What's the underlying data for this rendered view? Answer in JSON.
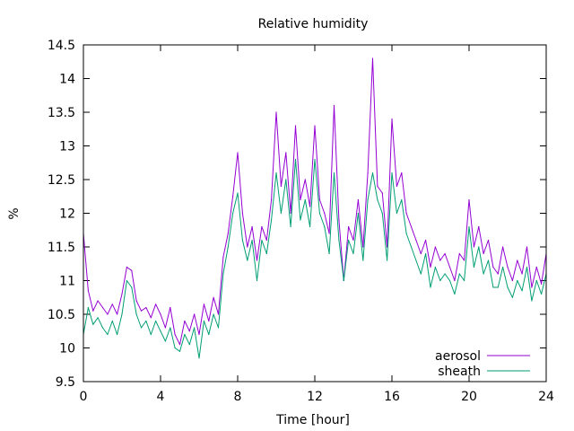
{
  "chart_data": {
    "type": "line",
    "title": "Relative humidity",
    "xlabel": "Time [hour]",
    "ylabel": "%",
    "xlim": [
      0,
      24
    ],
    "ylim": [
      9.5,
      14.5
    ],
    "x_ticks": [
      0,
      4,
      8,
      12,
      16,
      20,
      24
    ],
    "x_tick_labels": [
      "0",
      "4",
      "8",
      "12",
      "16",
      "20",
      "24"
    ],
    "y_ticks": [
      9.5,
      10,
      10.5,
      11,
      11.5,
      12,
      12.5,
      13,
      13.5,
      14,
      14.5
    ],
    "y_tick_labels": [
      "9.5",
      "10",
      "10.5",
      "11",
      "11.5",
      "12",
      "12.5",
      "13",
      "13.5",
      "14",
      "14.5"
    ],
    "grid": false,
    "legend_position": "bottom-right",
    "x": [
      0,
      0.25,
      0.5,
      0.75,
      1,
      1.25,
      1.5,
      1.75,
      2,
      2.25,
      2.5,
      2.75,
      3,
      3.25,
      3.5,
      3.75,
      4,
      4.25,
      4.5,
      4.75,
      5,
      5.25,
      5.5,
      5.75,
      6,
      6.25,
      6.5,
      6.75,
      7,
      7.25,
      7.5,
      7.75,
      8,
      8.25,
      8.5,
      8.75,
      9,
      9.25,
      9.5,
      9.75,
      10,
      10.25,
      10.5,
      10.75,
      11,
      11.25,
      11.5,
      11.75,
      12,
      12.25,
      12.5,
      12.75,
      13,
      13.25,
      13.5,
      13.75,
      14,
      14.25,
      14.5,
      14.75,
      15,
      15.25,
      15.5,
      15.75,
      16,
      16.25,
      16.5,
      16.75,
      17,
      17.25,
      17.5,
      17.75,
      18,
      18.25,
      18.5,
      18.75,
      19,
      19.25,
      19.5,
      19.75,
      20,
      20.25,
      20.5,
      20.75,
      21,
      21.25,
      21.5,
      21.75,
      22,
      22.25,
      22.5,
      22.75,
      23,
      23.25,
      23.5,
      23.75,
      24
    ],
    "series": [
      {
        "name": "aerosol",
        "color": "#9400d3",
        "values": [
          11.7,
          10.85,
          10.55,
          10.7,
          10.6,
          10.5,
          10.65,
          10.5,
          10.8,
          11.2,
          11.15,
          10.7,
          10.55,
          10.6,
          10.45,
          10.65,
          10.5,
          10.3,
          10.6,
          10.2,
          10.05,
          10.4,
          10.25,
          10.5,
          10.2,
          10.65,
          10.4,
          10.75,
          10.5,
          11.35,
          11.7,
          12.25,
          12.9,
          12.0,
          11.5,
          11.8,
          11.3,
          11.8,
          11.6,
          12.2,
          13.5,
          12.4,
          12.9,
          12.0,
          13.3,
          12.2,
          12.5,
          12.1,
          13.3,
          12.2,
          12.0,
          11.7,
          13.6,
          11.9,
          11.0,
          11.8,
          11.6,
          12.2,
          11.5,
          12.6,
          14.3,
          12.4,
          12.3,
          11.5,
          13.4,
          12.4,
          12.6,
          12.0,
          11.8,
          11.6,
          11.4,
          11.6,
          11.2,
          11.5,
          11.3,
          11.4,
          11.2,
          11.0,
          11.4,
          11.3,
          12.2,
          11.5,
          11.8,
          11.4,
          11.6,
          11.2,
          11.1,
          11.5,
          11.2,
          11.0,
          11.3,
          11.1,
          11.5,
          10.9,
          11.2,
          10.95,
          11.4
        ]
      },
      {
        "name": "sheath",
        "color": "#009e73",
        "values": [
          10.2,
          10.6,
          10.35,
          10.45,
          10.3,
          10.2,
          10.4,
          10.2,
          10.5,
          11.0,
          10.9,
          10.5,
          10.3,
          10.4,
          10.2,
          10.4,
          10.25,
          10.1,
          10.3,
          10.0,
          9.95,
          10.2,
          10.05,
          10.3,
          9.85,
          10.4,
          10.2,
          10.5,
          10.3,
          11.1,
          11.5,
          12.0,
          12.3,
          11.6,
          11.3,
          11.6,
          11.0,
          11.6,
          11.4,
          11.9,
          12.6,
          12.0,
          12.5,
          11.8,
          12.8,
          11.9,
          12.2,
          11.8,
          12.8,
          12.0,
          11.8,
          11.4,
          12.6,
          11.6,
          11.0,
          11.6,
          11.4,
          12.0,
          11.3,
          12.2,
          12.6,
          12.2,
          12.0,
          11.3,
          12.6,
          12.0,
          12.2,
          11.7,
          11.5,
          11.3,
          11.1,
          11.4,
          10.9,
          11.2,
          11.0,
          11.1,
          11.0,
          10.8,
          11.1,
          11.0,
          11.8,
          11.2,
          11.5,
          11.1,
          11.3,
          10.9,
          10.9,
          11.2,
          10.9,
          10.75,
          11.0,
          10.85,
          11.2,
          10.7,
          11.0,
          10.8,
          11.1
        ]
      }
    ]
  }
}
